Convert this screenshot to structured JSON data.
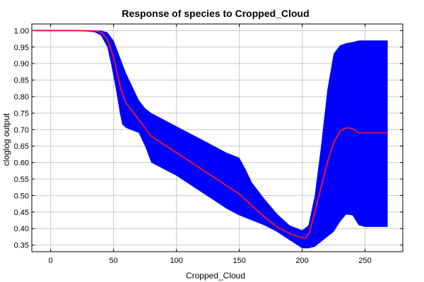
{
  "chart_data": {
    "type": "line",
    "title": "Response of species to Cropped_Cloud",
    "xlabel": "Cropped_Cloud",
    "ylabel": "cloglog output",
    "xlim": [
      -15,
      280
    ],
    "ylim": [
      0.33,
      1.02
    ],
    "x_ticks": [
      0,
      50,
      100,
      150,
      200,
      250
    ],
    "y_ticks": [
      0.35,
      0.4,
      0.45,
      0.5,
      0.55,
      0.6,
      0.65,
      0.7,
      0.75,
      0.8,
      0.85,
      0.9,
      0.95,
      1.0
    ],
    "x_tick_labels": [
      "0",
      "50",
      "100",
      "150",
      "200",
      "250"
    ],
    "y_tick_labels": [
      "0.35",
      "0.40",
      "0.45",
      "0.50",
      "0.55",
      "0.60",
      "0.65",
      "0.70",
      "0.75",
      "0.80",
      "0.85",
      "0.90",
      "0.95",
      "1.00"
    ],
    "grid": true,
    "colors": {
      "mean": "#e0143c",
      "band": "#0000ff"
    },
    "mean": {
      "x": [
        -13,
        0,
        20,
        35,
        40,
        45,
        50,
        53,
        56,
        60,
        70,
        80,
        90,
        100,
        110,
        120,
        130,
        140,
        150,
        160,
        170,
        180,
        190,
        200,
        203,
        206,
        208,
        212,
        216,
        220,
        225,
        230,
        235,
        238,
        242,
        245,
        250,
        268
      ],
      "y": [
        1.0,
        1.0,
        1.0,
        0.999,
        0.995,
        0.975,
        0.92,
        0.87,
        0.82,
        0.78,
        0.73,
        0.68,
        0.655,
        0.63,
        0.605,
        0.58,
        0.555,
        0.53,
        0.505,
        0.47,
        0.435,
        0.405,
        0.385,
        0.372,
        0.372,
        0.39,
        0.42,
        0.48,
        0.54,
        0.6,
        0.66,
        0.695,
        0.705,
        0.705,
        0.698,
        0.69,
        0.69,
        0.69
      ]
    },
    "band_upper": {
      "x": [
        -13,
        0,
        20,
        40,
        45,
        50,
        55,
        60,
        65,
        70,
        75,
        80,
        90,
        100,
        110,
        120,
        130,
        140,
        150,
        155,
        160,
        170,
        180,
        190,
        200,
        205,
        210,
        215,
        220,
        225,
        230,
        235,
        240,
        245,
        250,
        268
      ],
      "y": [
        1.0,
        1.0,
        1.0,
        1.0,
        0.995,
        0.97,
        0.92,
        0.87,
        0.83,
        0.79,
        0.765,
        0.75,
        0.73,
        0.71,
        0.69,
        0.67,
        0.65,
        0.63,
        0.615,
        0.58,
        0.54,
        0.49,
        0.445,
        0.41,
        0.395,
        0.41,
        0.5,
        0.65,
        0.82,
        0.93,
        0.955,
        0.962,
        0.965,
        0.97,
        0.97,
        0.97
      ]
    },
    "band_lower": {
      "x": [
        -13,
        0,
        20,
        35,
        40,
        45,
        48,
        52,
        55,
        57,
        60,
        70,
        75,
        80,
        90,
        100,
        110,
        120,
        130,
        140,
        150,
        160,
        170,
        180,
        190,
        200,
        205,
        210,
        215,
        220,
        225,
        230,
        235,
        240,
        245,
        250,
        268
      ],
      "y": [
        1.0,
        1.0,
        1.0,
        0.995,
        0.985,
        0.95,
        0.9,
        0.82,
        0.75,
        0.715,
        0.705,
        0.69,
        0.65,
        0.6,
        0.58,
        0.56,
        0.535,
        0.51,
        0.485,
        0.46,
        0.44,
        0.425,
        0.41,
        0.39,
        0.365,
        0.34,
        0.34,
        0.345,
        0.36,
        0.375,
        0.39,
        0.42,
        0.443,
        0.44,
        0.41,
        0.405,
        0.405
      ]
    }
  }
}
